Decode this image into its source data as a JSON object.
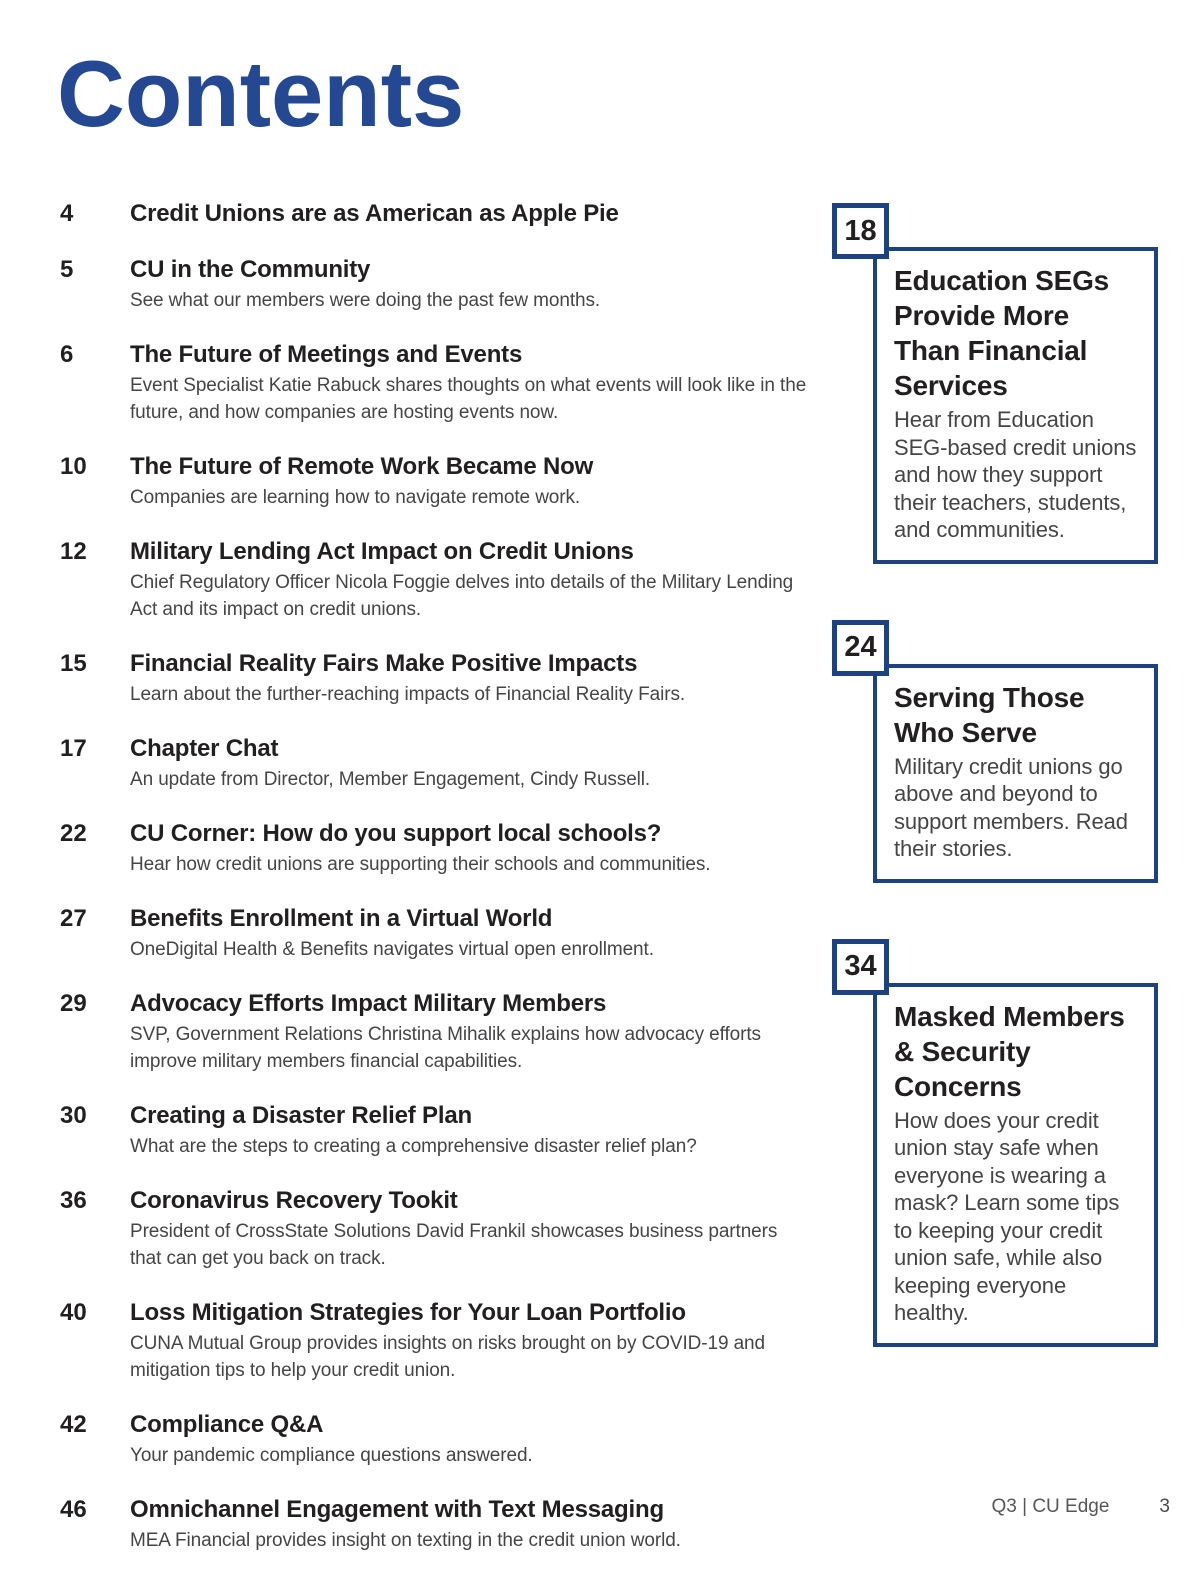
{
  "page": {
    "heading": "Contents",
    "footer": {
      "issue": "Q3 | CU Edge",
      "page_number": "3"
    },
    "colors": {
      "heading_blue": "#254893",
      "box_border_blue": "#1e4181",
      "title_black": "#221f20",
      "description_gray": "#454547"
    }
  },
  "toc": [
    {
      "page": "4",
      "title": "Credit Unions are as American as Apple Pie",
      "description": ""
    },
    {
      "page": "5",
      "title": "CU in the Community",
      "description": "See what our members were doing the past few months."
    },
    {
      "page": "6",
      "title": "The Future of Meetings and Events",
      "description": "Event Specialist Katie Rabuck shares thoughts on what events will look like in the future, and how companies are hosting events now."
    },
    {
      "page": "10",
      "title": "The Future of Remote Work Became Now",
      "description": "Companies are learning how to navigate remote work."
    },
    {
      "page": "12",
      "title": "Military Lending Act Impact on Credit Unions",
      "description": "Chief Regulatory Officer Nicola Foggie delves into details of the Military Lending Act and its impact on credit unions."
    },
    {
      "page": "15",
      "title": "Financial Reality Fairs Make Positive Impacts",
      "description": "Learn about the further-reaching impacts of Financial Reality Fairs."
    },
    {
      "page": "17",
      "title": "Chapter Chat",
      "description": "An update from Director, Member Engagement, Cindy Russell."
    },
    {
      "page": "22",
      "title": "CU Corner: How do you support local schools?",
      "description": "Hear how credit unions are supporting their schools and communities."
    },
    {
      "page": "27",
      "title": "Benefits Enrollment in a Virtual World",
      "description": "OneDigital Health & Benefits navigates virtual open enrollment."
    },
    {
      "page": "29",
      "title": "Advocacy Efforts Impact Military Members",
      "description": "SVP, Government Relations Christina Mihalik explains how advocacy efforts improve military members financial capabilities."
    },
    {
      "page": "30",
      "title": "Creating a Disaster Relief Plan",
      "description": "What are the steps to creating a comprehensive disaster relief plan?"
    },
    {
      "page": "36",
      "title": "Coronavirus Recovery Tookit",
      "description": "President of CrossState Solutions David Frankil showcases business partners that can get you back on track."
    },
    {
      "page": "40",
      "title": "Loss Mitigation Strategies for Your Loan Portfolio",
      "description": "CUNA Mutual Group provides insights on risks brought on by COVID-19 and mitigation tips to help your credit union."
    },
    {
      "page": "42",
      "title": "Compliance Q&A",
      "description": "Your pandemic compliance questions answered."
    },
    {
      "page": "46",
      "title": "Omnichannel Engagement with Text Messaging",
      "description": "MEA Financial provides insight on texting in the credit union world."
    }
  ],
  "features": [
    {
      "page": "18",
      "title": "Education SEGs Provide More Than Financial Services",
      "description": "Hear from Education SEG-based credit unions and how they support their teachers, students, and communities."
    },
    {
      "page": "24",
      "title": "Serving Those Who Serve",
      "description": "Military credit unions go above and beyond to support members. Read their stories."
    },
    {
      "page": "34",
      "title": "Masked Members & Security Concerns",
      "description": "How does your credit union stay safe when everyone is wearing a mask? Learn some tips to keeping your credit union safe, while also keeping everyone healthy."
    }
  ]
}
